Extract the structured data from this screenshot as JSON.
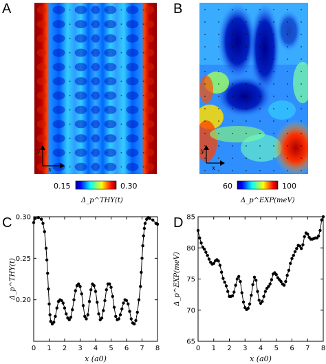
{
  "panels": {
    "a": {
      "letter": "A"
    },
    "b": {
      "letter": "B"
    },
    "c": {
      "letter": "C"
    },
    "d": {
      "letter": "D"
    }
  },
  "colorbars": {
    "thy": {
      "min_label": "0.15",
      "max_label": "0.30",
      "label": "Δ_p^THY(t)"
    },
    "exp": {
      "min_label": "60",
      "max_label": "100",
      "label": "Δ_p^EXP(meV)"
    }
  },
  "maps": {
    "thy": {
      "axis_x": "x",
      "axis_y": "y"
    },
    "exp": {
      "axis_x": "x",
      "axis_y": "y"
    }
  },
  "colors": {
    "curve": "#000000",
    "jet_low": "#00008f",
    "jet_mid": "#3fbf7f",
    "jet_high": "#8f0000"
  },
  "chart_data": [
    {
      "type": "heatmap",
      "panel": "A",
      "colorbar_range": [
        0.15,
        0.3
      ],
      "colorbar_ticks": [
        "0.15",
        "0.30"
      ],
      "colorbar_label": "Δ_p^THY(t)",
      "pattern": "vertical stripes along x, periodic modulation along y",
      "colormap": "jet"
    },
    {
      "type": "heatmap",
      "panel": "B",
      "colorbar_range": [
        60,
        100
      ],
      "colorbar_ticks": [
        "60",
        "100"
      ],
      "colorbar_label": "Δ_p^EXP(meV)",
      "colormap": "jet"
    },
    {
      "type": "line",
      "panel": "C",
      "xlabel": "x (a0)",
      "ylabel": "Δ_p^THY(t)",
      "xlim": [
        0,
        8
      ],
      "ylim": [
        0.15,
        0.3
      ],
      "xticks": [
        "0",
        "1",
        "2",
        "3",
        "4",
        "5",
        "6",
        "7",
        "8"
      ],
      "yticks": [
        "0.20",
        "0.25",
        "0.30"
      ],
      "x": [
        0,
        0.1,
        0.3,
        0.5,
        0.6,
        0.7,
        0.8,
        0.85,
        0.9,
        0.95,
        1.0,
        1.05,
        1.1,
        1.2,
        1.3,
        1.4,
        1.5,
        1.6,
        1.7,
        1.8,
        1.9,
        2.0,
        2.1,
        2.2,
        2.3,
        2.4,
        2.5,
        2.6,
        2.7,
        2.8,
        2.9,
        3.0,
        3.1,
        3.2,
        3.3,
        3.4,
        3.5,
        3.6,
        3.7,
        3.8,
        3.9,
        4.0,
        4.1,
        4.2,
        4.3,
        4.4,
        4.5,
        4.6,
        4.7,
        4.8,
        4.9,
        5.0,
        5.1,
        5.2,
        5.3,
        5.4,
        5.5,
        5.6,
        5.7,
        5.8,
        5.9,
        6.0,
        6.1,
        6.2,
        6.3,
        6.4,
        6.5,
        6.6,
        6.7,
        6.8,
        6.9,
        6.95,
        7.0,
        7.05,
        7.1,
        7.15,
        7.2,
        7.3,
        7.4,
        7.5,
        7.7,
        7.9,
        8.0
      ],
      "y": [
        0.293,
        0.298,
        0.299,
        0.297,
        0.292,
        0.282,
        0.262,
        0.248,
        0.232,
        0.213,
        0.195,
        0.182,
        0.174,
        0.171,
        0.173,
        0.18,
        0.19,
        0.198,
        0.2,
        0.199,
        0.196,
        0.19,
        0.183,
        0.178,
        0.176,
        0.179,
        0.188,
        0.2,
        0.211,
        0.217,
        0.219,
        0.216,
        0.207,
        0.193,
        0.18,
        0.177,
        0.182,
        0.198,
        0.212,
        0.219,
        0.217,
        0.21,
        0.197,
        0.183,
        0.176,
        0.178,
        0.187,
        0.199,
        0.212,
        0.219,
        0.219,
        0.215,
        0.204,
        0.191,
        0.18,
        0.176,
        0.177,
        0.182,
        0.189,
        0.196,
        0.2,
        0.199,
        0.195,
        0.186,
        0.177,
        0.172,
        0.171,
        0.175,
        0.185,
        0.2,
        0.216,
        0.233,
        0.25,
        0.265,
        0.277,
        0.286,
        0.292,
        0.297,
        0.299,
        0.298,
        0.296,
        0.292,
        0.291
      ]
    },
    {
      "type": "line",
      "panel": "D",
      "xlabel": "x (a0)",
      "ylabel": "Δ_p^EXP(meV)",
      "xlim": [
        0,
        8
      ],
      "ylim": [
        65,
        85
      ],
      "xticks": [
        "0",
        "1",
        "2",
        "3",
        "4",
        "5",
        "6",
        "7",
        "8"
      ],
      "yticks": [
        "65",
        "70",
        "75",
        "80",
        "85"
      ],
      "x": [
        0,
        0.1,
        0.2,
        0.3,
        0.4,
        0.5,
        0.6,
        0.7,
        0.8,
        0.9,
        1.0,
        1.1,
        1.2,
        1.3,
        1.4,
        1.5,
        1.6,
        1.7,
        1.8,
        1.9,
        2.0,
        2.1,
        2.2,
        2.3,
        2.4,
        2.5,
        2.6,
        2.7,
        2.8,
        2.9,
        3.0,
        3.1,
        3.2,
        3.3,
        3.4,
        3.5,
        3.6,
        3.7,
        3.8,
        3.9,
        4.0,
        4.1,
        4.2,
        4.3,
        4.4,
        4.5,
        4.6,
        4.7,
        4.8,
        4.9,
        5.0,
        5.1,
        5.2,
        5.3,
        5.4,
        5.5,
        5.6,
        5.7,
        5.8,
        5.9,
        6.0,
        6.1,
        6.2,
        6.3,
        6.4,
        6.5,
        6.6,
        6.7,
        6.8,
        6.9,
        7.0,
        7.1,
        7.2,
        7.3,
        7.4,
        7.5,
        7.6,
        7.7,
        7.8,
        7.9,
        8.0
      ],
      "y": [
        82.8,
        81.6,
        80.8,
        80.1,
        79.8,
        79.3,
        78.8,
        78.2,
        77.7,
        77.4,
        77.5,
        77.9,
        78.1,
        77.9,
        77.2,
        76.1,
        75.1,
        74.5,
        73.9,
        73.0,
        72.2,
        72.2,
        72.3,
        72.9,
        74.0,
        75.0,
        75.4,
        74.6,
        72.8,
        71.3,
        70.4,
        70.1,
        70.3,
        71.0,
        72.4,
        74.1,
        75.3,
        74.8,
        73.0,
        71.6,
        71.1,
        71.4,
        72.2,
        73.0,
        73.5,
        73.8,
        74.2,
        74.9,
        75.8,
        76.0,
        75.7,
        75.2,
        74.9,
        74.6,
        74.2,
        74.0,
        74.6,
        75.6,
        76.4,
        77.5,
        78.3,
        78.8,
        79.4,
        79.9,
        80.4,
        80.3,
        79.9,
        80.5,
        81.8,
        82.4,
        82.2,
        81.7,
        81.4,
        81.4,
        81.5,
        81.6,
        81.6,
        81.9,
        82.8,
        84.5,
        85.0
      ]
    }
  ]
}
